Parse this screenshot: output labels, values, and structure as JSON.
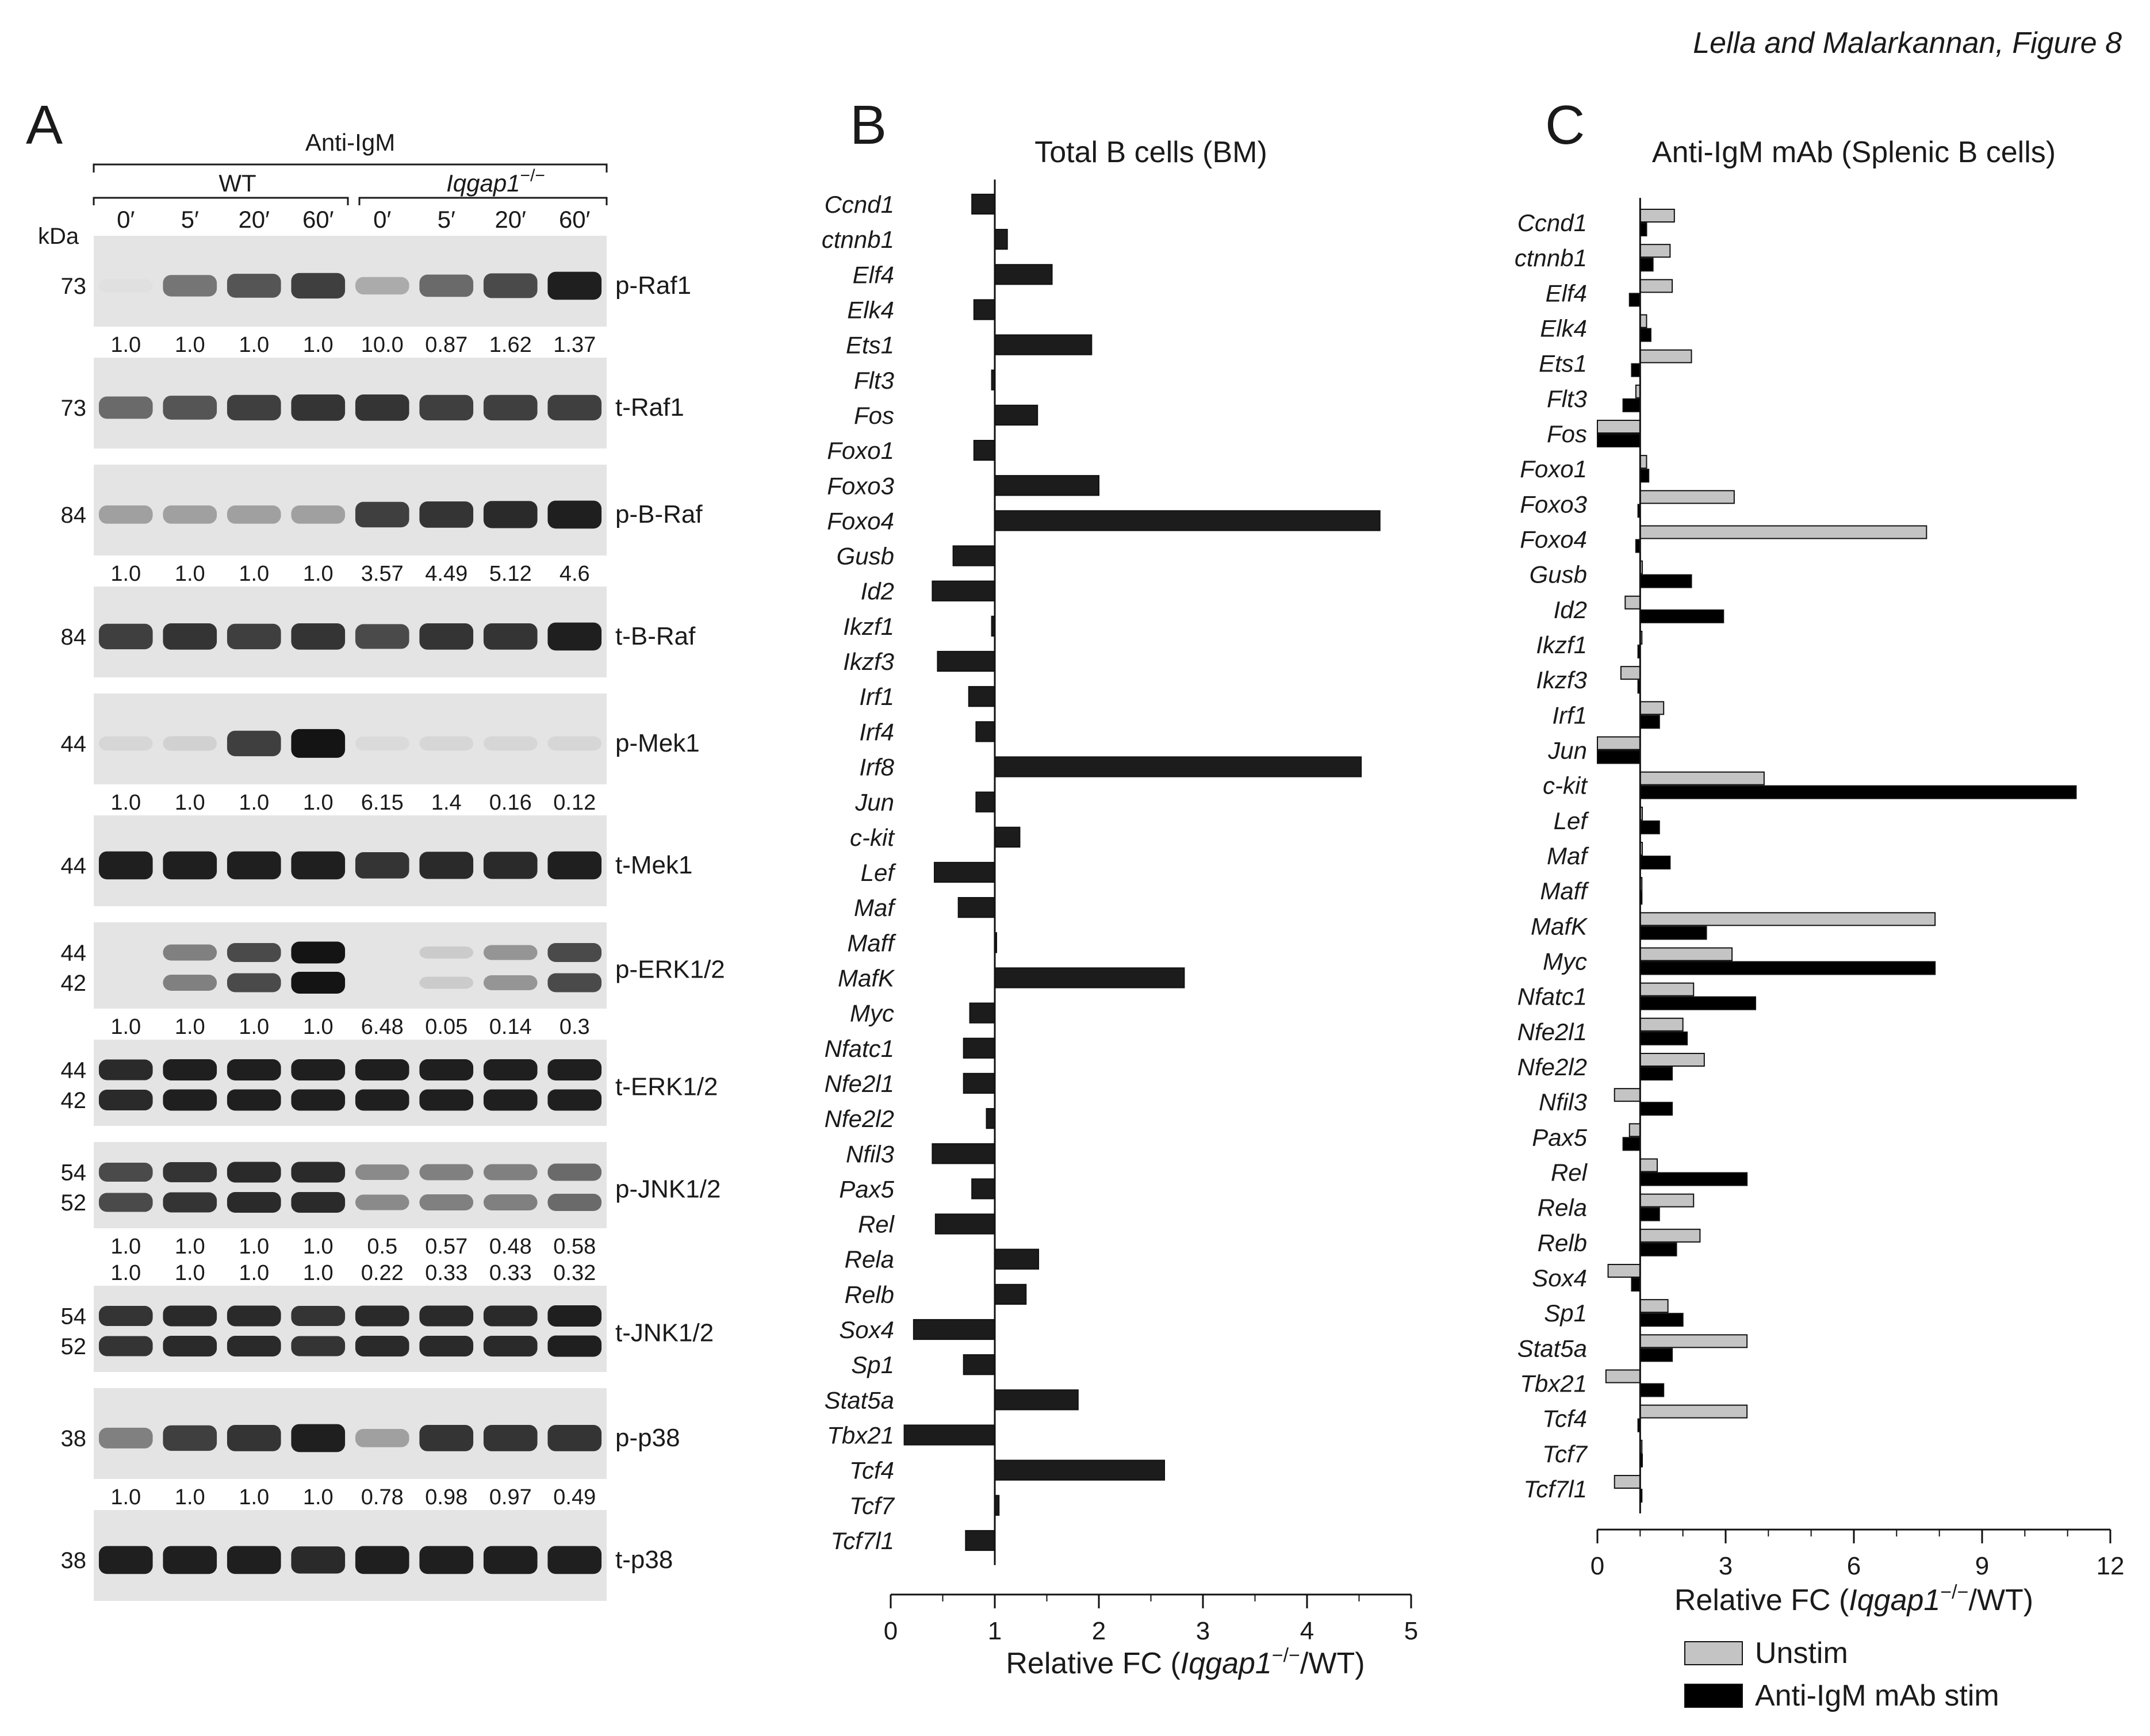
{
  "caption": "Lella and Malarkannan, Figure 8",
  "panelA": {
    "label": "A",
    "treatment": "Anti-IgM",
    "groups": [
      "WT",
      "Iqgap1−/−"
    ],
    "timepoints": [
      "0′",
      "5′",
      "20′",
      "60′",
      "0′",
      "5′",
      "20′",
      "60′"
    ],
    "kda_header": "kDa",
    "blots": [
      {
        "protein": "p-Raf1",
        "kda": [
          "73"
        ],
        "quant": [
          [
            "1.0",
            "1.0",
            "1.0",
            "1.0",
            "10.0",
            "0.87",
            "1.62",
            "1.37"
          ]
        ],
        "intensity": [
          0.05,
          0.55,
          0.7,
          0.8,
          0.3,
          0.6,
          0.75,
          0.95
        ]
      },
      {
        "protein": "t-Raf1",
        "kda": [
          "73"
        ],
        "quant": [],
        "intensity": [
          0.6,
          0.7,
          0.8,
          0.85,
          0.85,
          0.8,
          0.8,
          0.8
        ]
      },
      {
        "protein": "p-B-Raf",
        "kda": [
          "84"
        ],
        "quant": [
          [
            "1.0",
            "1.0",
            "1.0",
            "1.0",
            "3.57",
            "4.49",
            "5.12",
            "4.6"
          ]
        ],
        "intensity": [
          0.35,
          0.35,
          0.35,
          0.35,
          0.8,
          0.85,
          0.9,
          0.95
        ]
      },
      {
        "protein": "t-B-Raf",
        "kda": [
          "84"
        ],
        "quant": [],
        "intensity": [
          0.8,
          0.85,
          0.8,
          0.85,
          0.75,
          0.85,
          0.85,
          0.95
        ]
      },
      {
        "protein": "p-Mek1",
        "kda": [
          "44"
        ],
        "quant": [
          [
            "1.0",
            "1.0",
            "1.0",
            "1.0",
            "6.15",
            "1.4",
            "0.16",
            "0.12"
          ]
        ],
        "intensity": [
          0.1,
          0.12,
          0.8,
          1.0,
          0.08,
          0.1,
          0.1,
          0.1
        ]
      },
      {
        "protein": "t-Mek1",
        "kda": [
          "44"
        ],
        "quant": [],
        "intensity": [
          0.95,
          0.95,
          0.95,
          0.95,
          0.85,
          0.9,
          0.9,
          0.95
        ]
      },
      {
        "protein": "p-ERK1/2",
        "kda": [
          "44",
          "42"
        ],
        "quant": [
          [
            "1.0",
            "1.0",
            "1.0",
            "1.0",
            "6.48",
            "0.05",
            "0.14",
            "0.3"
          ]
        ],
        "intensity": [
          0.0,
          0.5,
          0.75,
          1.0,
          0.0,
          0.15,
          0.4,
          0.75
        ]
      },
      {
        "protein": "t-ERK1/2",
        "kda": [
          "44",
          "42"
        ],
        "quant": [],
        "intensity": [
          0.9,
          0.95,
          0.95,
          0.95,
          0.95,
          0.95,
          0.95,
          0.95
        ]
      },
      {
        "protein": "p-JNK1/2",
        "kda": [
          "54",
          "52"
        ],
        "quant": [
          [
            "1.0",
            "1.0",
            "1.0",
            "1.0",
            "0.5",
            "0.57",
            "0.48",
            "0.58"
          ],
          [
            "1.0",
            "1.0",
            "1.0",
            "1.0",
            "0.22",
            "0.33",
            "0.33",
            "0.32"
          ]
        ],
        "intensity": [
          0.75,
          0.85,
          0.9,
          0.9,
          0.45,
          0.5,
          0.5,
          0.6
        ]
      },
      {
        "protein": "t-JNK1/2",
        "kda": [
          "54",
          "52"
        ],
        "quant": [],
        "intensity": [
          0.85,
          0.9,
          0.9,
          0.85,
          0.9,
          0.9,
          0.9,
          0.95
        ]
      },
      {
        "protein": "p-p38",
        "kda": [
          "38"
        ],
        "quant": [
          [
            "1.0",
            "1.0",
            "1.0",
            "1.0",
            "0.78",
            "0.98",
            "0.97",
            "0.49"
          ]
        ],
        "intensity": [
          0.5,
          0.8,
          0.85,
          0.95,
          0.35,
          0.85,
          0.85,
          0.85
        ]
      },
      {
        "protein": "t-p38",
        "kda": [
          "38"
        ],
        "quant": [],
        "intensity": [
          0.95,
          0.95,
          0.95,
          0.9,
          0.95,
          0.95,
          0.95,
          0.95
        ]
      }
    ]
  },
  "chart_data": [
    {
      "panel": "B",
      "type": "bar",
      "orientation": "horizontal",
      "title": "Total B cells (BM)",
      "xlabel_parts": [
        "Relative FC (",
        "Iqgap1",
        "−/−",
        "/WT)"
      ],
      "xlim": [
        0,
        5
      ],
      "xticks": [
        0,
        1,
        2,
        3,
        4,
        5
      ],
      "baseline": 1,
      "categories": [
        "Ccnd1",
        "ctnnb1",
        "Elf4",
        "Elk4",
        "Ets1",
        "Flt3",
        "Fos",
        "Foxo1",
        "Foxo3",
        "Foxo4",
        "Gusb",
        "Id2",
        "Ikzf1",
        "Ikzf3",
        "Irf1",
        "Irf4",
        "Irf8",
        "Jun",
        "c-kit",
        "Lef",
        "Maf",
        "Maff",
        "MafK",
        "Myc",
        "Nfatc1",
        "Nfe2l1",
        "Nfe2l2",
        "Nfil3",
        "Pax5",
        "Rel",
        "Rela",
        "Relb",
        "Sox4",
        "Sp1",
        "Stat5a",
        "Tbx21",
        "Tcf4",
        "Tcf7",
        "Tcf7l1"
      ],
      "series": [
        {
          "color": "#1c1c1c",
          "values": [
            0.78,
            1.12,
            1.55,
            0.8,
            1.93,
            0.97,
            1.41,
            0.8,
            2.0,
            4.7,
            0.6,
            0.4,
            0.97,
            0.45,
            0.75,
            0.82,
            4.52,
            0.82,
            1.24,
            0.42,
            0.65,
            1.0,
            2.82,
            0.76,
            0.7,
            0.7,
            0.92,
            0.4,
            0.78,
            0.43,
            1.42,
            1.3,
            0.22,
            0.7,
            1.8,
            0.13,
            2.63,
            1.04,
            0.72
          ]
        }
      ]
    },
    {
      "panel": "C",
      "type": "bar",
      "orientation": "horizontal",
      "title": "Anti-IgM mAb (Splenic B cells)",
      "xlabel_parts": [
        "Relative FC (",
        "Iqgap1",
        "−/−",
        "/WT)"
      ],
      "xlim": [
        0,
        12
      ],
      "xticks": [
        0,
        3,
        6,
        9,
        12
      ],
      "baseline": 1,
      "legend_position": "bottom",
      "categories": [
        "Ccnd1",
        "ctnnb1",
        "Elf4",
        "Elk4",
        "Ets1",
        "Flt3",
        "Fos",
        "Foxo1",
        "Foxo3",
        "Foxo4",
        "Gusb",
        "Id2",
        "Ikzf1",
        "Ikzf3",
        "Irf1",
        "Jun",
        "c-kit",
        "Lef",
        "Maf",
        "Maff",
        "MafK",
        "Myc",
        "Nfatc1",
        "Nfe2l1",
        "Nfe2l2",
        "Nfil3",
        "Pax5",
        "Rel",
        "Rela",
        "Relb",
        "Sox4",
        "Sp1",
        "Stat5a",
        "Tbx21",
        "Tcf4",
        "Tcf7",
        "Tcf7l1"
      ],
      "series": [
        {
          "name": "Unstim",
          "color": "#c4c4c4",
          "values": [
            1.8,
            1.7,
            1.75,
            1.15,
            2.2,
            0.9,
            0.0,
            1.15,
            3.2,
            7.7,
            1.05,
            0.65,
            1.0,
            0.55,
            1.55,
            0.0,
            3.9,
            1.05,
            1.05,
            1.0,
            7.9,
            3.15,
            2.25,
            2.0,
            2.5,
            0.4,
            0.75,
            1.4,
            2.25,
            2.4,
            0.25,
            1.65,
            3.5,
            0.2,
            3.5,
            1.0,
            0.4
          ]
        },
        {
          "name": "Anti-IgM mAb stim",
          "color": "#000000",
          "values": [
            1.15,
            1.3,
            0.75,
            1.25,
            0.8,
            0.6,
            0.0,
            1.2,
            0.95,
            0.9,
            2.2,
            2.95,
            0.95,
            0.95,
            1.45,
            0.0,
            11.2,
            1.45,
            1.7,
            1.0,
            2.55,
            7.9,
            3.7,
            2.1,
            1.75,
            1.75,
            0.6,
            3.5,
            1.45,
            1.85,
            0.8,
            2.0,
            1.75,
            1.55,
            0.95,
            1.05,
            1.0
          ]
        }
      ]
    }
  ]
}
